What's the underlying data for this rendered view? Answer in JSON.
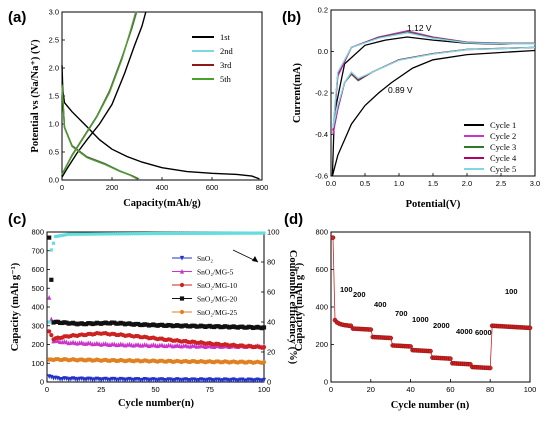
{
  "chart_data": [
    {
      "panel": "(a)",
      "type": "line",
      "xlabel": "Capacity(mAh/g)",
      "ylabel": "Potential vs (Na/Na⁺) (V)",
      "xlim": [
        0,
        800
      ],
      "ylim": [
        0,
        3.0
      ],
      "xticks": [
        "0",
        "200",
        "400",
        "600",
        "800"
      ],
      "yticks": [
        "0.0",
        "0.5",
        "1.0",
        "1.5",
        "2.0",
        "2.5",
        "3.0"
      ],
      "legend_position": "top-right",
      "series": [
        {
          "name": "1st",
          "color": "#000000",
          "discharge": [
            [
              0,
              2.05
            ],
            [
              3,
              1.6
            ],
            [
              10,
              1.38
            ],
            [
              40,
              1.22
            ],
            [
              100,
              0.95
            ],
            [
              150,
              0.72
            ],
            [
              200,
              0.55
            ],
            [
              260,
              0.42
            ],
            [
              320,
              0.32
            ],
            [
              400,
              0.22
            ],
            [
              500,
              0.15
            ],
            [
              600,
              0.12
            ],
            [
              700,
              0.1
            ],
            [
              760,
              0.07
            ],
            [
              790,
              0.02
            ]
          ],
          "charge": [
            [
              0,
              0.05
            ],
            [
              20,
              0.2
            ],
            [
              60,
              0.48
            ],
            [
              100,
              0.72
            ],
            [
              150,
              1.0
            ],
            [
              200,
              1.35
            ],
            [
              250,
              1.9
            ],
            [
              290,
              2.4
            ],
            [
              320,
              2.75
            ],
            [
              335,
              3.0
            ]
          ]
        },
        {
          "name": "2nd",
          "color": "#7fd8e0",
          "discharge": [
            [
              0,
              1.7
            ],
            [
              10,
              0.95
            ],
            [
              40,
              0.62
            ],
            [
              100,
              0.42
            ],
            [
              170,
              0.3
            ],
            [
              230,
              0.17
            ],
            [
              280,
              0.08
            ],
            [
              310,
              0.02
            ]
          ],
          "charge": [
            [
              0,
              0.1
            ],
            [
              40,
              0.45
            ],
            [
              90,
              0.8
            ],
            [
              140,
              1.15
            ],
            [
              190,
              1.6
            ],
            [
              240,
              2.2
            ],
            [
              280,
              2.7
            ],
            [
              300,
              3.0
            ]
          ]
        },
        {
          "name": "3rd",
          "color": "#8b1a1a",
          "discharge": [
            [
              0,
              1.7
            ],
            [
              10,
              0.94
            ],
            [
              40,
              0.61
            ],
            [
              100,
              0.41
            ],
            [
              170,
              0.29
            ],
            [
              230,
              0.16
            ],
            [
              278,
              0.08
            ],
            [
              305,
              0.02
            ]
          ],
          "charge": [
            [
              0,
              0.1
            ],
            [
              40,
              0.44
            ],
            [
              90,
              0.79
            ],
            [
              140,
              1.14
            ],
            [
              190,
              1.58
            ],
            [
              240,
              2.18
            ],
            [
              278,
              2.7
            ],
            [
              297,
              3.0
            ]
          ]
        },
        {
          "name": "5th",
          "color": "#4aa02c",
          "discharge": [
            [
              0,
              1.7
            ],
            [
              10,
              0.93
            ],
            [
              40,
              0.6
            ],
            [
              100,
              0.4
            ],
            [
              170,
              0.28
            ],
            [
              228,
              0.16
            ],
            [
              275,
              0.08
            ],
            [
              300,
              0.02
            ]
          ],
          "charge": [
            [
              0,
              0.1
            ],
            [
              40,
              0.43
            ],
            [
              90,
              0.78
            ],
            [
              140,
              1.13
            ],
            [
              190,
              1.56
            ],
            [
              240,
              2.16
            ],
            [
              276,
              2.7
            ],
            [
              295,
              3.0
            ]
          ]
        }
      ]
    },
    {
      "panel": "(b)",
      "type": "line",
      "xlabel": "Potential(V)",
      "ylabel": "Current(mA)",
      "xlim": [
        0,
        3.0
      ],
      "ylim": [
        -0.6,
        0.2
      ],
      "xticks": [
        "0.0",
        "0.5",
        "1.0",
        "1.5",
        "2.0",
        "2.5",
        "3.0"
      ],
      "yticks": [
        "-0.6",
        "-0.4",
        "-0.2",
        "0.0",
        "0.2"
      ],
      "legend_position": "bottom-right",
      "annotations": [
        "1.12 V",
        "0.89 V"
      ],
      "series": [
        {
          "name": "Cycle 1",
          "color": "#000000",
          "curve": [
            [
              3.0,
              0.005
            ],
            [
              2.5,
              -0.005
            ],
            [
              2.0,
              -0.015
            ],
            [
              1.5,
              -0.04
            ],
            [
              1.2,
              -0.08
            ],
            [
              0.89,
              -0.15
            ],
            [
              0.7,
              -0.2
            ],
            [
              0.5,
              -0.26
            ],
            [
              0.3,
              -0.35
            ],
            [
              0.1,
              -0.5
            ],
            [
              0.02,
              -0.6
            ],
            [
              0.05,
              -0.3
            ],
            [
              0.2,
              -0.06
            ],
            [
              0.5,
              0.03
            ],
            [
              0.8,
              0.055
            ],
            [
              1.12,
              0.07
            ],
            [
              1.5,
              0.055
            ],
            [
              2.0,
              0.04
            ],
            [
              2.5,
              0.035
            ],
            [
              3.0,
              0.04
            ]
          ]
        },
        {
          "name": "Cycle 2",
          "color": "#cc33cc",
          "curve": [
            [
              3.0,
              0.02
            ],
            [
              2.5,
              0.015
            ],
            [
              2.0,
              0.01
            ],
            [
              1.5,
              -0.01
            ],
            [
              1.0,
              -0.04
            ],
            [
              0.6,
              -0.1
            ],
            [
              0.4,
              -0.14
            ],
            [
              0.3,
              -0.1
            ],
            [
              0.2,
              -0.15
            ],
            [
              0.1,
              -0.28
            ],
            [
              0.03,
              -0.4
            ],
            [
              0.1,
              -0.12
            ],
            [
              0.3,
              0.02
            ],
            [
              0.7,
              0.07
            ],
            [
              1.12,
              0.1
            ],
            [
              1.5,
              0.07
            ],
            [
              2.0,
              0.045
            ],
            [
              2.5,
              0.04
            ],
            [
              3.0,
              0.04
            ]
          ]
        },
        {
          "name": "Cycle 3",
          "color": "#2a7a2a",
          "curve": [
            [
              3.0,
              0.02
            ],
            [
              2.5,
              0.015
            ],
            [
              2.0,
              0.01
            ],
            [
              1.5,
              -0.01
            ],
            [
              1.0,
              -0.04
            ],
            [
              0.6,
              -0.1
            ],
            [
              0.4,
              -0.14
            ],
            [
              0.3,
              -0.11
            ],
            [
              0.2,
              -0.15
            ],
            [
              0.1,
              -0.27
            ],
            [
              0.03,
              -0.38
            ],
            [
              0.1,
              -0.11
            ],
            [
              0.3,
              0.02
            ],
            [
              0.7,
              0.068
            ],
            [
              1.12,
              0.095
            ],
            [
              1.5,
              0.068
            ],
            [
              2.0,
              0.044
            ],
            [
              2.5,
              0.039
            ],
            [
              3.0,
              0.039
            ]
          ]
        },
        {
          "name": "Cycle 4",
          "color": "#b0006a",
          "curve": [
            [
              3.0,
              0.02
            ],
            [
              2.5,
              0.014
            ],
            [
              2.0,
              0.009
            ],
            [
              1.5,
              -0.011
            ],
            [
              1.0,
              -0.041
            ],
            [
              0.6,
              -0.1
            ],
            [
              0.4,
              -0.135
            ],
            [
              0.3,
              -0.105
            ],
            [
              0.2,
              -0.15
            ],
            [
              0.1,
              -0.27
            ],
            [
              0.03,
              -0.38
            ],
            [
              0.1,
              -0.11
            ],
            [
              0.3,
              0.02
            ],
            [
              0.7,
              0.066
            ],
            [
              1.12,
              0.092
            ],
            [
              1.5,
              0.066
            ],
            [
              2.0,
              0.043
            ],
            [
              2.5,
              0.038
            ],
            [
              3.0,
              0.038
            ]
          ]
        },
        {
          "name": "Cycle 5",
          "color": "#7fd8e0",
          "curve": [
            [
              3.0,
              0.02
            ],
            [
              2.5,
              0.014
            ],
            [
              2.0,
              0.009
            ],
            [
              1.5,
              -0.012
            ],
            [
              1.0,
              -0.042
            ],
            [
              0.6,
              -0.1
            ],
            [
              0.4,
              -0.13
            ],
            [
              0.3,
              -0.1
            ],
            [
              0.2,
              -0.15
            ],
            [
              0.1,
              -0.26
            ],
            [
              0.03,
              -0.37
            ],
            [
              0.1,
              -0.1
            ],
            [
              0.3,
              0.02
            ],
            [
              0.7,
              0.064
            ],
            [
              1.12,
              0.09
            ],
            [
              1.5,
              0.064
            ],
            [
              2.0,
              0.042
            ],
            [
              2.5,
              0.037
            ],
            [
              3.0,
              0.037
            ]
          ]
        }
      ]
    },
    {
      "panel": "(c)",
      "type": "scatter",
      "xlabel": "Cycle number(n)",
      "ylabel": "Capacity (mAh g⁻¹)",
      "ylabel_right": "Coulombic efficiency (%)",
      "xlim": [
        0,
        100
      ],
      "ylim": [
        0,
        800
      ],
      "ylim_right": [
        0,
        100
      ],
      "xticks": [
        "0",
        "25",
        "50",
        "75",
        "100"
      ],
      "yticks": [
        "0",
        "100",
        "200",
        "300",
        "400",
        "500",
        "600",
        "700",
        "800"
      ],
      "yticks_right": [
        "0",
        "20",
        "40",
        "60",
        "80",
        "100"
      ],
      "legend_position": "center-right",
      "series": [
        {
          "name": "SnO₂",
          "color": "#2233cc",
          "marker": "triangle-down",
          "first": 30,
          "values": [
            [
              1,
              30
            ],
            [
              5,
              18
            ],
            [
              20,
              15
            ],
            [
              50,
              12
            ],
            [
              100,
              10
            ]
          ]
        },
        {
          "name": "SnO₂/MG-5",
          "color": "#cc33cc",
          "marker": "triangle-up",
          "first": 450,
          "values": [
            [
              1,
              450
            ],
            [
              3,
              220
            ],
            [
              10,
              210
            ],
            [
              30,
              200
            ],
            [
              50,
              195
            ],
            [
              75,
              190
            ],
            [
              100,
              190
            ]
          ]
        },
        {
          "name": "SnO₂/MG-10",
          "color": "#cc2222",
          "marker": "circle",
          "first": 270,
          "values": [
            [
              1,
              270
            ],
            [
              3,
              230
            ],
            [
              10,
              245
            ],
            [
              25,
              260
            ],
            [
              40,
              245
            ],
            [
              60,
              220
            ],
            [
              80,
              200
            ],
            [
              100,
              185
            ]
          ]
        },
        {
          "name": "SnO₂/MG-20",
          "color": "#111111",
          "marker": "square",
          "first": 770,
          "values": [
            [
              1,
              770
            ],
            [
              3,
              320
            ],
            [
              15,
              310
            ],
            [
              30,
              315
            ],
            [
              45,
              305
            ],
            [
              60,
              300
            ],
            [
              80,
              295
            ],
            [
              100,
              290
            ]
          ]
        },
        {
          "name": "SnO₂/MG-25",
          "color": "#e08020",
          "marker": "circle",
          "first": 120,
          "values": [
            [
              1,
              120
            ],
            [
              5,
              120
            ],
            [
              30,
              115
            ],
            [
              60,
              110
            ],
            [
              100,
              105
            ]
          ]
        }
      ],
      "coulombic_efficiency": {
        "color": "#66dddd",
        "values": [
          [
            1,
            40
          ],
          [
            2,
            88
          ],
          [
            4,
            97
          ],
          [
            10,
            98.5
          ],
          [
            50,
            99
          ],
          [
            100,
            99.3
          ]
        ]
      }
    },
    {
      "panel": "(d)",
      "type": "scatter",
      "xlabel": "Cycle number (n)",
      "ylabel": "Capacity (mAh g⁻¹)",
      "xlim": [
        0,
        100
      ],
      "ylim": [
        0,
        800
      ],
      "xticks": [
        "0",
        "20",
        "40",
        "60",
        "80",
        "100"
      ],
      "yticks": [
        "0",
        "200",
        "400",
        "600",
        "800"
      ],
      "rate_labels": [
        "100",
        "200",
        "400",
        "700",
        "1000",
        "2000",
        "4000",
        "6000",
        "100"
      ],
      "rate_steps": [
        {
          "start": 1,
          "end": 10,
          "values": [
            770,
            330,
            318,
            312,
            308,
            305,
            303,
            302,
            300,
            300
          ]
        },
        {
          "start": 11,
          "end": 20,
          "level": 285
        },
        {
          "start": 21,
          "end": 30,
          "level": 240
        },
        {
          "start": 31,
          "end": 40,
          "level": 195
        },
        {
          "start": 41,
          "end": 50,
          "level": 170
        },
        {
          "start": 51,
          "end": 60,
          "level": 130
        },
        {
          "start": 61,
          "end": 70,
          "level": 100
        },
        {
          "start": 71,
          "end": 80,
          "level": 80
        },
        {
          "start": 81,
          "end": 100,
          "level": 300
        }
      ],
      "color": "#cc2222"
    }
  ]
}
